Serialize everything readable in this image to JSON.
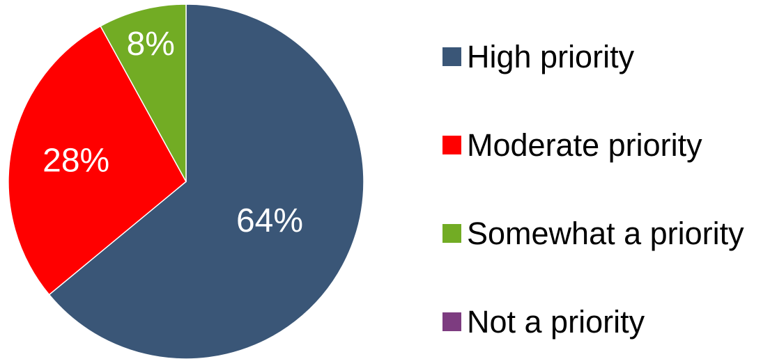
{
  "chart_data": {
    "type": "pie",
    "categories": [
      "High priority",
      "Moderate priority",
      "Somewhat a priority",
      "Not a priority"
    ],
    "values": [
      64,
      28,
      8,
      0
    ],
    "value_labels": [
      "64%",
      "28%",
      "8%",
      ""
    ],
    "colors": [
      "#3a5677",
      "#ff0000",
      "#72ac24",
      "#7d3c80"
    ],
    "start_angle": "12 o'clock",
    "direction": "clockwise",
    "legend_position": "right"
  },
  "legend": {
    "items": [
      {
        "label": "High priority",
        "color": "#3a5677"
      },
      {
        "label": "Moderate priority",
        "color": "#ff0000"
      },
      {
        "label": "Somewhat a priority",
        "color": "#72ac24"
      },
      {
        "label": "Not a priority",
        "color": "#7d3c80"
      }
    ]
  }
}
